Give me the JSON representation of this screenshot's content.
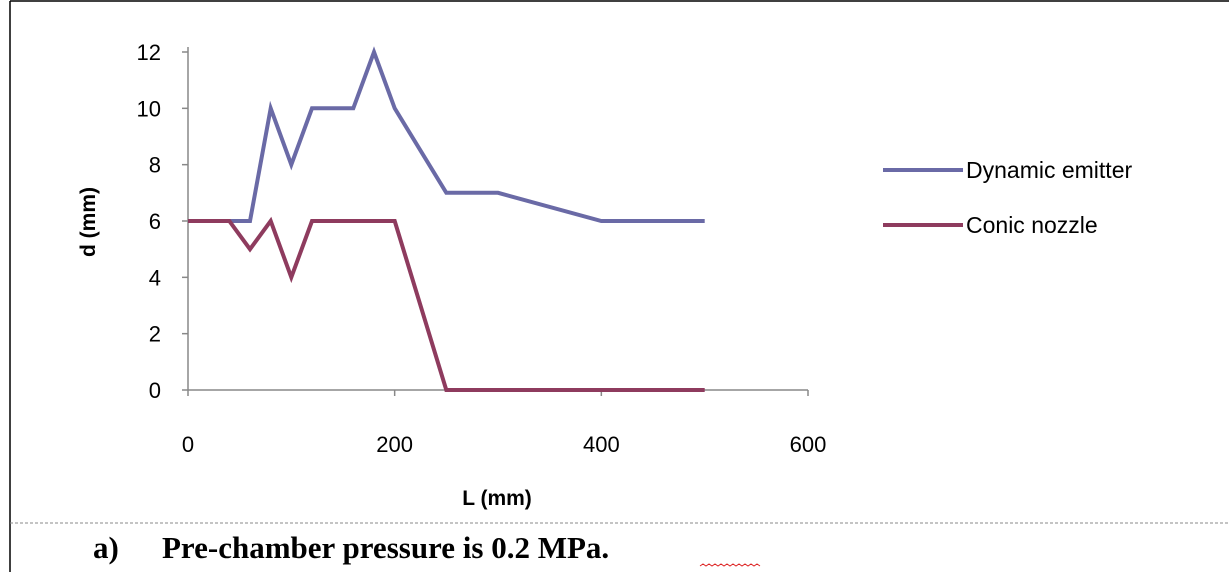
{
  "chart_data": {
    "type": "line",
    "title": "",
    "xlabel": "L (mm)",
    "ylabel": "d (mm)",
    "xlim": [
      0,
      600
    ],
    "ylim": [
      0,
      12
    ],
    "xticks": [
      0,
      200,
      400,
      600
    ],
    "yticks": [
      0,
      2,
      4,
      6,
      8,
      10,
      12
    ],
    "grid": false,
    "legend_position": "right",
    "series": [
      {
        "name": "Dynamic emitter",
        "color": "#6A6AA6",
        "x": [
          0,
          20,
          40,
          60,
          80,
          100,
          120,
          140,
          160,
          180,
          200,
          250,
          300,
          400,
          500
        ],
        "y": [
          6,
          6,
          6,
          6,
          10,
          8,
          10,
          10,
          10,
          12,
          10,
          7,
          7,
          6,
          6
        ]
      },
      {
        "name": "Conic nozzle",
        "color": "#8E3B5E",
        "x": [
          0,
          20,
          40,
          60,
          80,
          100,
          120,
          140,
          160,
          180,
          200,
          250,
          300,
          400,
          500
        ],
        "y": [
          6,
          6,
          6,
          5,
          6,
          4,
          6,
          6,
          6,
          6,
          6,
          0,
          0,
          0,
          0
        ]
      }
    ]
  },
  "caption": {
    "marker": "a)",
    "text": "Pre-chamber pressure is 0.2 MPa."
  }
}
